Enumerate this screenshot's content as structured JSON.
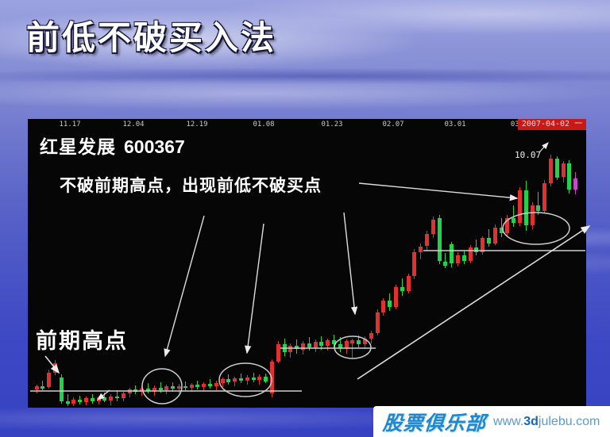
{
  "slide": {
    "title": "前低不破买入法"
  },
  "chart": {
    "stock_name": "红星发展",
    "stock_code": "600367",
    "annotation_main": "不破前期高点，出现前低不破买点",
    "annotation_prior_high": "前期高点",
    "price_label": "10.07",
    "current_date": "2007-04-02",
    "current_date_suffix": "一",
    "colors": {
      "bull": "#e03030",
      "bear": "#22d24a",
      "last_candle": "#cc44cc",
      "annotation_line": "#d4d4d4",
      "date_box_bg": "#c81818"
    }
  },
  "chart_data": {
    "type": "candlestick",
    "title": "红星发展 600367",
    "x_ticks": [
      "11.17",
      "12.04",
      "12.19",
      "01.08",
      "01.23",
      "02.07",
      "03.01",
      "03."
    ],
    "ylim": [
      5.0,
      10.8
    ],
    "grid": false,
    "legend": false,
    "peak_price_annotation": 10.07,
    "candles_ohlc": [
      [
        5.38,
        5.48,
        5.3,
        5.44
      ],
      [
        5.44,
        5.55,
        5.36,
        5.4
      ],
      [
        5.42,
        5.78,
        5.4,
        5.72
      ],
      [
        5.72,
        5.96,
        5.66,
        5.9
      ],
      [
        5.62,
        5.68,
        5.1,
        5.15
      ],
      [
        5.15,
        5.28,
        5.05,
        5.1
      ],
      [
        5.1,
        5.22,
        5.04,
        5.18
      ],
      [
        5.18,
        5.25,
        5.08,
        5.12
      ],
      [
        5.12,
        5.24,
        5.06,
        5.2
      ],
      [
        5.2,
        5.28,
        5.1,
        5.14
      ],
      [
        5.14,
        5.26,
        5.08,
        5.22
      ],
      [
        5.22,
        5.32,
        5.12,
        5.16
      ],
      [
        5.16,
        5.28,
        5.06,
        5.24
      ],
      [
        5.24,
        5.36,
        5.15,
        5.2
      ],
      [
        5.2,
        5.34,
        5.14,
        5.3
      ],
      [
        5.3,
        5.42,
        5.22,
        5.38
      ],
      [
        5.38,
        5.46,
        5.28,
        5.33
      ],
      [
        5.33,
        5.44,
        5.25,
        5.4
      ],
      [
        5.4,
        5.5,
        5.3,
        5.35
      ],
      [
        5.35,
        5.46,
        5.26,
        5.42
      ],
      [
        5.42,
        5.52,
        5.32,
        5.37
      ],
      [
        5.37,
        5.48,
        5.28,
        5.44
      ],
      [
        5.44,
        5.53,
        5.34,
        5.39
      ],
      [
        5.39,
        5.49,
        5.3,
        5.45
      ],
      [
        5.45,
        5.54,
        5.36,
        5.41
      ],
      [
        5.41,
        5.51,
        5.33,
        5.47
      ],
      [
        5.47,
        5.56,
        5.38,
        5.43
      ],
      [
        5.43,
        5.52,
        5.35,
        5.49
      ],
      [
        5.49,
        5.58,
        5.4,
        5.45
      ],
      [
        5.45,
        5.55,
        5.37,
        5.51
      ],
      [
        5.51,
        5.62,
        5.43,
        5.58
      ],
      [
        5.58,
        5.68,
        5.48,
        5.53
      ],
      [
        5.53,
        5.64,
        5.45,
        5.6
      ],
      [
        5.6,
        5.7,
        5.5,
        5.55
      ],
      [
        5.55,
        5.66,
        5.47,
        5.62
      ],
      [
        5.62,
        5.72,
        5.52,
        5.57
      ],
      [
        5.57,
        5.68,
        5.48,
        5.64
      ],
      [
        5.64,
        5.7,
        5.5,
        5.54
      ],
      [
        5.3,
        5.98,
        5.22,
        5.94
      ],
      [
        5.94,
        6.35,
        5.9,
        6.28
      ],
      [
        6.28,
        6.4,
        6.05,
        6.12
      ],
      [
        6.12,
        6.3,
        6.02,
        6.25
      ],
      [
        6.25,
        6.38,
        6.1,
        6.18
      ],
      [
        6.18,
        6.35,
        6.08,
        6.3
      ],
      [
        6.3,
        6.42,
        6.15,
        6.22
      ],
      [
        6.22,
        6.38,
        6.12,
        6.33
      ],
      [
        6.33,
        6.45,
        6.18,
        6.25
      ],
      [
        6.25,
        6.4,
        6.15,
        6.36
      ],
      [
        6.36,
        6.48,
        6.2,
        6.28
      ],
      [
        6.28,
        6.42,
        6.12,
        6.2
      ],
      [
        6.2,
        6.38,
        6.1,
        6.34
      ],
      [
        6.3,
        6.4,
        6.02,
        6.36
      ],
      [
        6.36,
        6.46,
        6.22,
        6.28
      ],
      [
        6.28,
        6.44,
        6.18,
        6.4
      ],
      [
        6.4,
        6.55,
        6.3,
        6.5
      ],
      [
        6.5,
        6.98,
        6.46,
        6.92
      ],
      [
        6.92,
        7.2,
        6.85,
        7.15
      ],
      [
        7.15,
        7.3,
        6.95,
        7.02
      ],
      [
        7.02,
        7.48,
        6.98,
        7.42
      ],
      [
        7.42,
        7.6,
        7.25,
        7.35
      ],
      [
        7.35,
        7.7,
        7.3,
        7.65
      ],
      [
        7.65,
        8.18,
        7.58,
        8.12
      ],
      [
        8.12,
        8.3,
        7.98,
        8.24
      ],
      [
        8.24,
        8.55,
        8.15,
        8.48
      ],
      [
        8.48,
        8.84,
        8.4,
        8.78
      ],
      [
        8.8,
        8.86,
        7.88,
        7.94
      ],
      [
        7.94,
        8.1,
        7.8,
        7.85
      ],
      [
        8.28,
        8.33,
        7.82,
        7.9
      ],
      [
        7.9,
        8.12,
        7.84,
        8.06
      ],
      [
        8.06,
        8.16,
        7.88,
        7.94
      ],
      [
        7.94,
        8.26,
        7.9,
        8.22
      ],
      [
        8.22,
        8.38,
        8.06,
        8.12
      ],
      [
        8.12,
        8.44,
        8.08,
        8.4
      ],
      [
        8.4,
        8.58,
        8.24,
        8.3
      ],
      [
        8.3,
        8.68,
        8.26,
        8.62
      ],
      [
        8.62,
        8.8,
        8.42,
        8.5
      ],
      [
        8.5,
        8.86,
        8.44,
        8.8
      ],
      [
        8.8,
        9.05,
        8.62,
        8.7
      ],
      [
        8.7,
        9.42,
        8.65,
        9.36
      ],
      [
        9.36,
        9.55,
        8.55,
        8.66
      ],
      [
        8.66,
        9.12,
        8.58,
        9.06
      ],
      [
        9.06,
        9.32,
        8.86,
        8.94
      ],
      [
        8.94,
        9.56,
        8.9,
        9.5
      ],
      [
        9.5,
        10.07,
        9.44,
        10.0
      ],
      [
        10.0,
        10.04,
        9.56,
        9.62
      ],
      [
        9.62,
        9.95,
        9.52,
        9.9
      ],
      [
        9.9,
        9.96,
        9.3,
        9.38
      ],
      [
        9.38,
        9.72,
        9.28,
        9.6
      ]
    ]
  },
  "watermark": {
    "brand": "股票俱乐部",
    "url_prefix": "www.",
    "url_bold": "3d",
    "url_suffix": "julebu.com"
  }
}
